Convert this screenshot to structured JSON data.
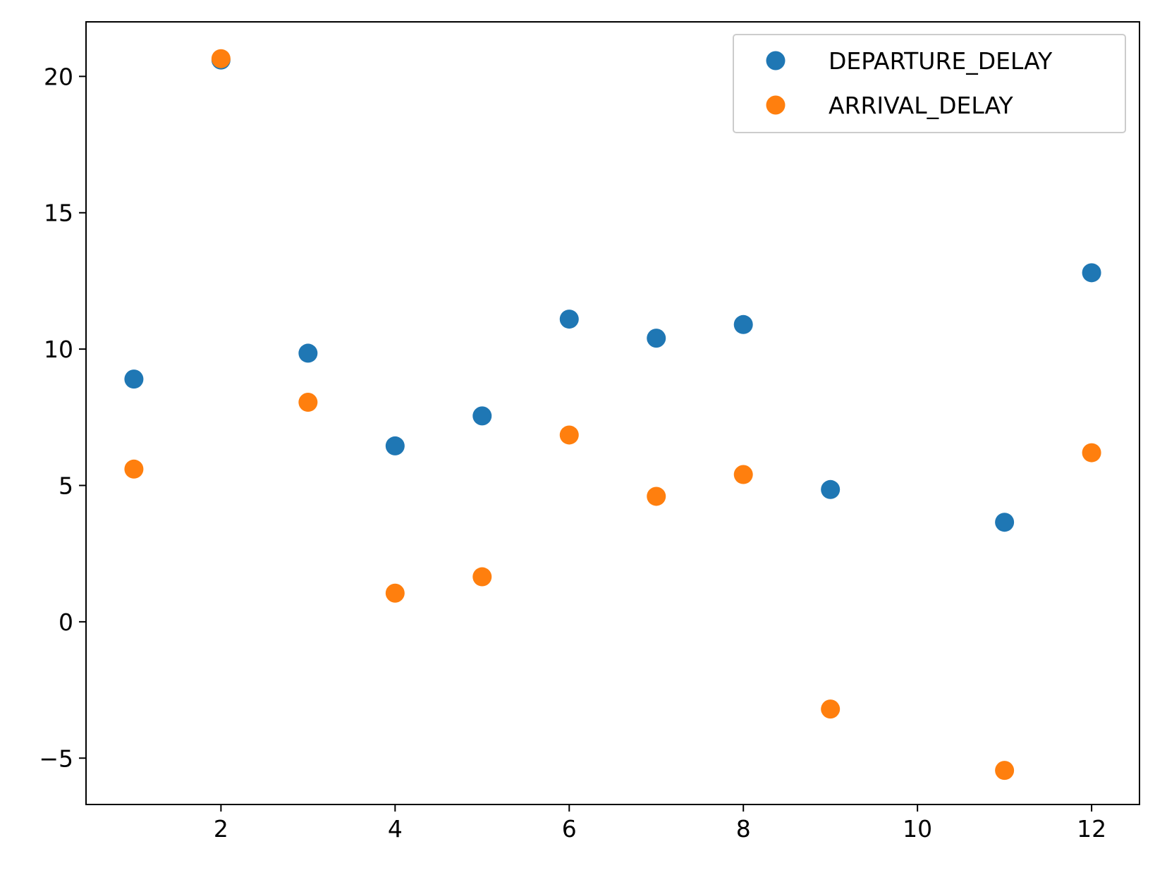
{
  "chart_data": {
    "type": "scatter",
    "title": "",
    "xlabel": "",
    "ylabel": "",
    "xlim": [
      0.45,
      12.55
    ],
    "ylim": [
      -6.7,
      22
    ],
    "x_ticks": [
      2,
      4,
      6,
      8,
      10,
      12
    ],
    "y_ticks": [
      -5,
      0,
      5,
      10,
      15,
      20
    ],
    "x_tick_labels": [
      "2",
      "4",
      "6",
      "8",
      "10",
      "12"
    ],
    "y_tick_labels": [
      "−5",
      "0",
      "5",
      "10",
      "15",
      "20"
    ],
    "grid": false,
    "legend_position": "top-right",
    "x": [
      1,
      2,
      3,
      4,
      5,
      6,
      7,
      8,
      9,
      11,
      12
    ],
    "series": [
      {
        "name": "DEPARTURE_DELAY",
        "color": "#1f77b4",
        "values": [
          8.9,
          20.6,
          9.85,
          6.45,
          7.55,
          11.1,
          10.4,
          10.9,
          4.85,
          3.65,
          12.8
        ]
      },
      {
        "name": "ARRIVAL_DELAY",
        "color": "#ff7f0e",
        "values": [
          5.6,
          20.65,
          8.05,
          1.05,
          1.65,
          6.85,
          4.6,
          5.4,
          -3.2,
          -5.45,
          6.2
        ]
      }
    ]
  }
}
